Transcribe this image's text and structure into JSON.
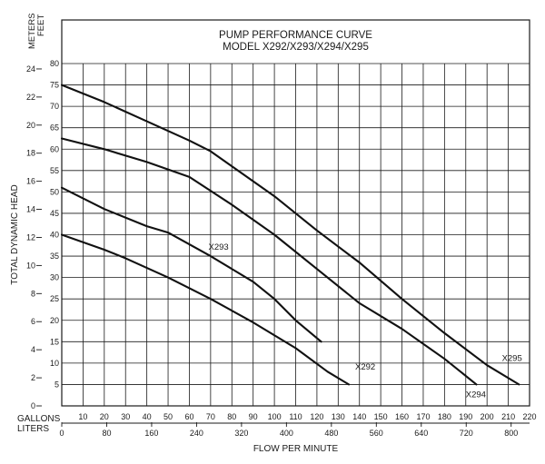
{
  "chart_data": {
    "type": "line",
    "title": "PUMP PERFORMANCE CURVE",
    "subtitle": "MODEL X292/X293/X294/X295",
    "xlabel": "FLOW PER MINUTE",
    "ylabel": "TOTAL DYNAMIC HEAD",
    "x_units_primary": "GALLONS",
    "x_units_secondary": "LITERS",
    "y_units_left": "METERS",
    "y_units_right": "FEET",
    "xlim": [
      0,
      220
    ],
    "ylim_feet": [
      0,
      80
    ],
    "gallons_ticks": [
      10,
      20,
      30,
      40,
      50,
      60,
      70,
      80,
      90,
      100,
      110,
      120,
      130,
      140,
      150,
      160,
      170,
      180,
      190,
      200,
      210,
      220
    ],
    "liters_ticks": [
      0,
      80,
      160,
      240,
      320,
      400,
      480,
      560,
      640,
      720,
      800
    ],
    "feet_ticks": [
      5,
      10,
      15,
      20,
      25,
      30,
      35,
      40,
      45,
      50,
      55,
      60,
      65,
      70,
      75,
      80
    ],
    "meter_ticks": [
      0,
      2,
      4,
      6,
      8,
      10,
      12,
      14,
      16,
      18,
      20,
      22,
      24
    ],
    "grid": true,
    "series": [
      {
        "name": "X292",
        "x": [
          0,
          20,
          30,
          50,
          70,
          90,
          110,
          125,
          135
        ],
        "y": [
          40,
          36.5,
          34.5,
          30,
          25,
          19.5,
          13.5,
          8,
          5
        ],
        "label_at": [
          138,
          8.5
        ]
      },
      {
        "name": "X293",
        "x": [
          0,
          20,
          40,
          50,
          70,
          90,
          100,
          110,
          122
        ],
        "y": [
          51,
          46,
          42,
          40.5,
          35,
          29,
          25,
          20,
          15
        ],
        "label_at": [
          69,
          36.5
        ]
      },
      {
        "name": "X294",
        "x": [
          0,
          20,
          40,
          60,
          80,
          100,
          120,
          140,
          160,
          180,
          195
        ],
        "y": [
          62.5,
          60,
          57,
          53.5,
          47,
          40,
          32,
          24,
          18,
          11,
          5
        ],
        "label_at": [
          190,
          2
        ]
      },
      {
        "name": "X295",
        "x": [
          0,
          20,
          40,
          60,
          70,
          80,
          100,
          120,
          140,
          160,
          180,
          200,
          215
        ],
        "y": [
          75,
          71,
          66.5,
          62,
          59.5,
          56,
          49,
          41,
          33.5,
          25,
          17,
          9.5,
          5
        ],
        "label_at": [
          207,
          10.5
        ]
      }
    ]
  }
}
